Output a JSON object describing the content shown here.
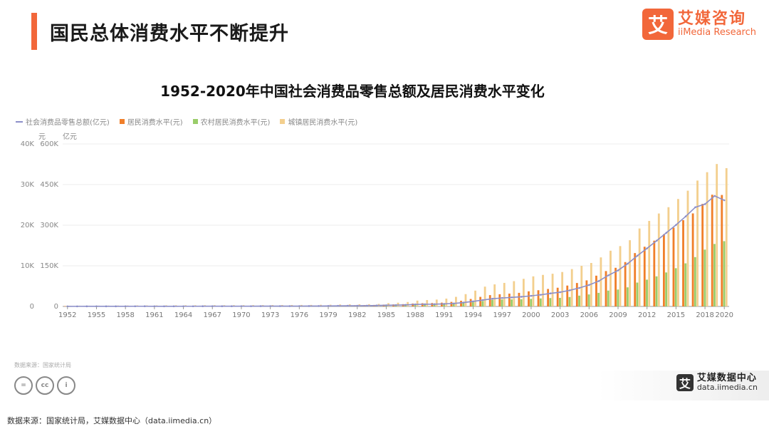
{
  "page_heading": "国民总体消费水平不断提升",
  "brand": {
    "mark": "艾",
    "name_cn": "艾媒咨询",
    "name_en": "iiMedia Research"
  },
  "chart_title": "1952-2020年中国社会消费品零售总额及居民消费水平变化",
  "units": {
    "left": "元",
    "right": "亿元"
  },
  "chart_note": "数据来源：国家统计局",
  "license_icons": [
    "=",
    "cc",
    "i"
  ],
  "data_center": {
    "mark": "艾",
    "name_cn": "艾媒数据中心",
    "url": "data.iimedia.cn"
  },
  "source": "数据来源：国家统计局，艾媒数据中心（data.iimedia.cn）",
  "colors": {
    "accent": "#F2673A",
    "total_retail": "#8C8FC9",
    "residents": "#F07F2A",
    "rural": "#9ACD6A",
    "urban": "#F3CF8E"
  },
  "chart_data": {
    "type": "bar",
    "title": "1952-2020年中国社会消费品零售总额及居民消费水平变化",
    "x": [
      1952,
      1953,
      1954,
      1955,
      1956,
      1957,
      1958,
      1959,
      1960,
      1961,
      1962,
      1963,
      1964,
      1965,
      1966,
      1967,
      1968,
      1969,
      1970,
      1971,
      1972,
      1973,
      1974,
      1975,
      1976,
      1977,
      1978,
      1979,
      1980,
      1981,
      1982,
      1983,
      1984,
      1985,
      1986,
      1987,
      1988,
      1989,
      1990,
      1991,
      1992,
      1993,
      1994,
      1995,
      1996,
      1997,
      1998,
      1999,
      2000,
      2001,
      2002,
      2003,
      2004,
      2005,
      2006,
      2007,
      2008,
      2009,
      2010,
      2011,
      2012,
      2013,
      2014,
      2015,
      2016,
      2017,
      2018,
      2019,
      2020
    ],
    "x_tick_labels": [
      "1952",
      "1955",
      "1958",
      "1961",
      "1964",
      "1967",
      "1970",
      "1973",
      "1976",
      "1979",
      "1982",
      "1985",
      "1988",
      "1991",
      "1994",
      "1997",
      "2000",
      "2003",
      "2006",
      "2009",
      "2012",
      "2015",
      "2018",
      "2020"
    ],
    "left_axis": {
      "unit": "元",
      "ticks": [
        "0",
        "10K",
        "20K",
        "30K",
        "40K"
      ],
      "ylim": [
        0,
        40000
      ]
    },
    "right_axis": {
      "unit": "亿元",
      "ticks": [
        "0",
        "150K",
        "300K",
        "450K",
        "600K"
      ],
      "ylim": [
        0,
        600000
      ]
    },
    "series": [
      {
        "name": "社会消费品零售总额(亿元)",
        "type": "line",
        "axis": "right",
        "values": [
          277,
          348,
          381,
          392,
          461,
          474,
          548,
          638,
          697,
          607,
          604,
          604,
          638,
          670,
          732,
          770,
          737,
          801,
          858,
          929,
          1023,
          1107,
          1164,
          1271,
          1339,
          1433,
          1559,
          1800,
          2140,
          2350,
          2570,
          2849,
          3377,
          4305,
          4950,
          5820,
          7440,
          8101,
          8300,
          9416,
          10994,
          14270,
          18623,
          23614,
          28360,
          31253,
          33378,
          35648,
          39106,
          43055,
          48136,
          52516,
          59501,
          68353,
          79145,
          93572,
          114830,
          133048,
          158008,
          187206,
          214433,
          242843,
          271896,
          300931,
          332316,
          366262,
          377783,
          408017,
          391981
        ]
      },
      {
        "name": "居民消费水平(元)",
        "type": "bar",
        "axis": "left",
        "values": [
          80,
          91,
          92,
          99,
          103,
          108,
          112,
          109,
          115,
          122,
          126,
          128,
          131,
          134,
          139,
          143,
          139,
          144,
          147,
          150,
          155,
          162,
          163,
          167,
          171,
          175,
          184,
          208,
          238,
          264,
          288,
          316,
          361,
          446,
          497,
          565,
          714,
          788,
          833,
          932,
          1116,
          1393,
          1833,
          2355,
          2789,
          3002,
          3159,
          3346,
          3721,
          3987,
          4301,
          4606,
          5138,
          5771,
          6416,
          7572,
          8707,
          9514,
          10919,
          13134,
          14699,
          16190,
          17778,
          19397,
          21228,
          22902,
          25245,
          27504,
          27438
        ]
      },
      {
        "name": "农村居民消费水平(元)",
        "type": "bar",
        "axis": "left",
        "values": [
          65,
          72,
          72,
          76,
          78,
          79,
          83,
          65,
          68,
          82,
          88,
          90,
          95,
          100,
          106,
          108,
          104,
          107,
          114,
          116,
          116,
          123,
          123,
          124,
          125,
          124,
          138,
          159,
          178,
          201,
          223,
          250,
          287,
          347,
          376,
          417,
          508,
          553,
          560,
          602,
          688,
          805,
          1038,
          1313,
          1626,
          1722,
          1730,
          1766,
          1860,
          1969,
          2062,
          2103,
          2319,
          2657,
          2950,
          3347,
          3901,
          4163,
          4700,
          5870,
          6590,
          7404,
          8365,
          9409,
          10609,
          12145,
          13985,
          15382,
          16063
        ]
      },
      {
        "name": "城镇居民消费水平(元)",
        "type": "bar",
        "axis": "left",
        "values": [
          154,
          188,
          188,
          198,
          212,
          222,
          233,
          255,
          248,
          257,
          276,
          287,
          292,
          296,
          305,
          311,
          306,
          310,
          315,
          323,
          331,
          341,
          346,
          356,
          369,
          376,
          405,
          425,
          489,
          521,
          536,
          558,
          618,
          802,
          920,
          1089,
          1431,
          1568,
          1686,
          1925,
          2356,
          3027,
          3891,
          4874,
          5430,
          5796,
          6217,
          6796,
          7402,
          7761,
          8047,
          8473,
          9191,
          10000,
          10700,
          12071,
          13721,
          14852,
          16300,
          19188,
          21050,
          22880,
          24430,
          26450,
          28493,
          30986,
          33045,
          35058,
          34043
        ]
      }
    ],
    "grid": true,
    "legend_position": "top-left"
  }
}
